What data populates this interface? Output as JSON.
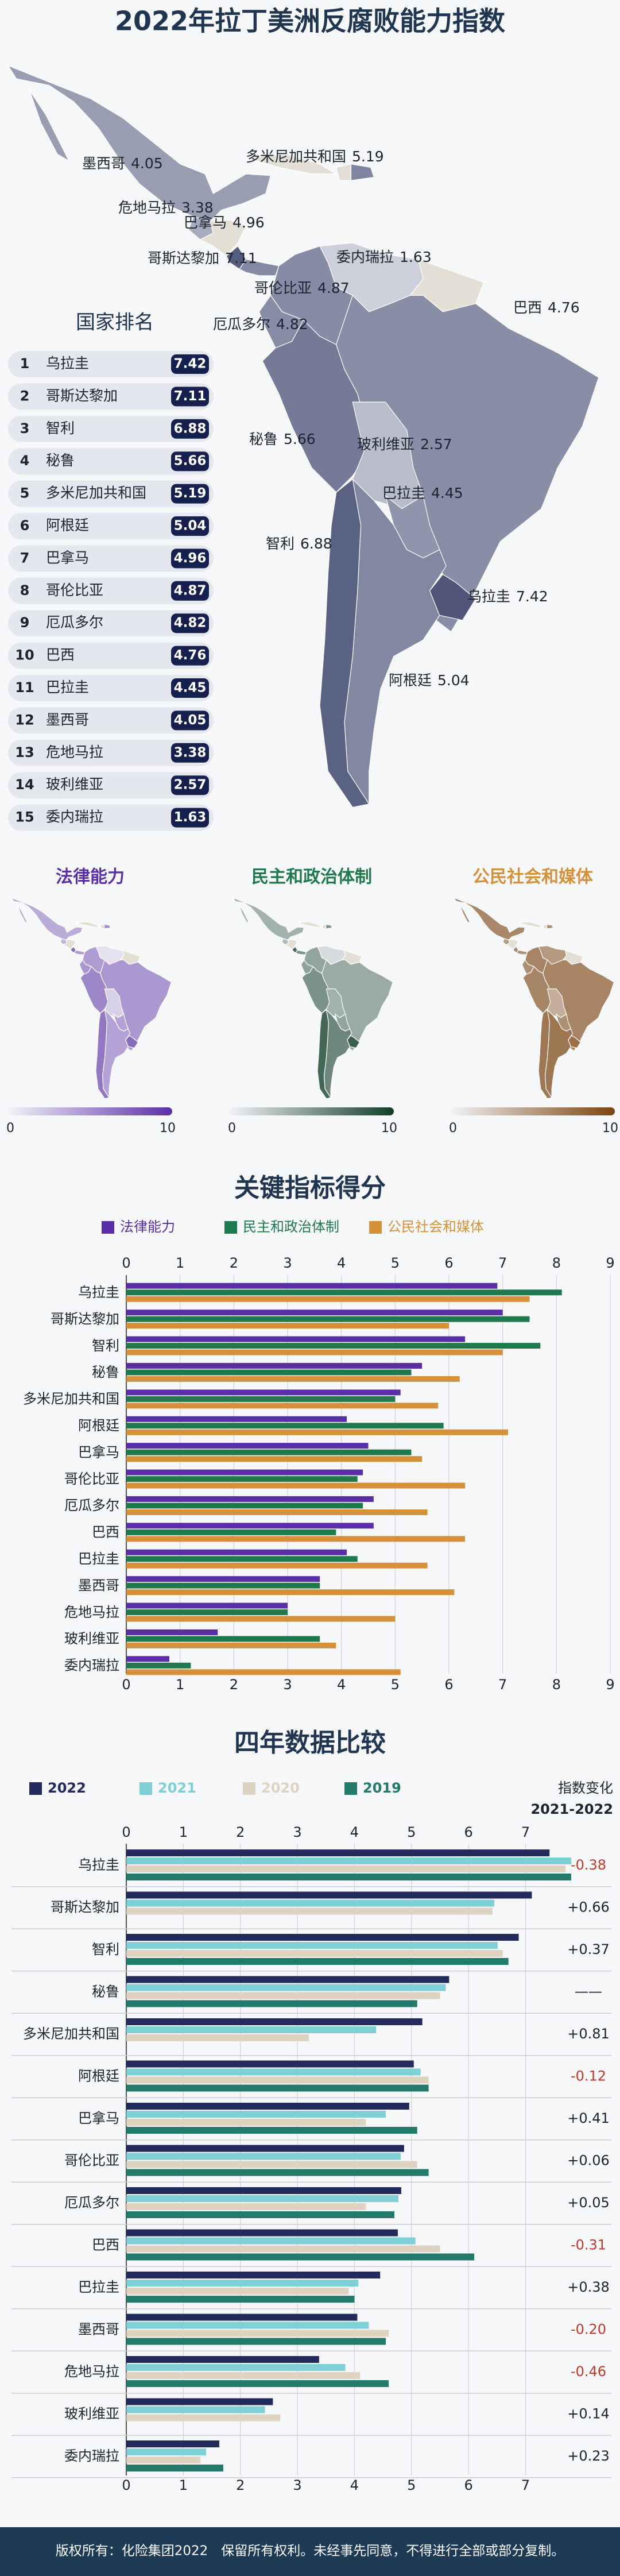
{
  "title": "2022年拉丁美洲反腐败能力指数",
  "map_color": "#16204f",
  "ranking": {
    "title": "国家排名",
    "items": [
      {
        "rank": 1,
        "name": "乌拉圭",
        "score": 7.42
      },
      {
        "rank": 2,
        "name": "哥斯达黎加",
        "score": 7.11
      },
      {
        "rank": 3,
        "name": "智利",
        "score": 6.88
      },
      {
        "rank": 4,
        "name": "秘鲁",
        "score": 5.66
      },
      {
        "rank": 5,
        "name": "多米尼加共和国",
        "score": 5.19
      },
      {
        "rank": 6,
        "name": "阿根廷",
        "score": 5.04
      },
      {
        "rank": 7,
        "name": "巴拿马",
        "score": 4.96
      },
      {
        "rank": 8,
        "name": "哥伦比亚",
        "score": 4.87
      },
      {
        "rank": 9,
        "name": "厄瓜多尔",
        "score": 4.82
      },
      {
        "rank": 10,
        "name": "巴西",
        "score": 4.76
      },
      {
        "rank": 11,
        "name": "巴拉圭",
        "score": 4.45
      },
      {
        "rank": 12,
        "name": "墨西哥",
        "score": 4.05
      },
      {
        "rank": 13,
        "name": "危地马拉",
        "score": 3.38
      },
      {
        "rank": 14,
        "name": "玻利维亚",
        "score": 2.57
      },
      {
        "rank": 15,
        "name": "委内瑞拉",
        "score": 1.63
      }
    ]
  },
  "indicator_maps": {
    "scale": [
      0,
      10
    ],
    "maps": [
      {
        "title": "法律能力",
        "color": "#5a2ea6"
      },
      {
        "title": "民主和政治体制",
        "color": "#123d28"
      },
      {
        "title": "公民社会和媒体",
        "color": "#7a440f"
      }
    ]
  },
  "chart_data": [
    {
      "type": "bar",
      "orientation": "horizontal",
      "title": "关键指标得分",
      "categories": [
        "乌拉圭",
        "哥斯达黎加",
        "智利",
        "秘鲁",
        "多米尼加共和国",
        "阿根廷",
        "巴拿马",
        "哥伦比亚",
        "厄瓜多尔",
        "巴西",
        "巴拉圭",
        "墨西哥",
        "危地马拉",
        "玻利维亚",
        "委内瑞拉"
      ],
      "series": [
        {
          "name": "法律能力",
          "color": "#5a2ea6",
          "values": [
            6.9,
            7.0,
            6.3,
            5.5,
            5.1,
            4.1,
            4.5,
            4.4,
            4.6,
            4.6,
            4.1,
            3.6,
            3.0,
            1.7,
            0.8
          ]
        },
        {
          "name": "民主和政治体制",
          "color": "#1e7a4c",
          "values": [
            8.1,
            7.5,
            7.7,
            5.3,
            5.0,
            5.9,
            5.3,
            4.3,
            4.4,
            3.9,
            4.3,
            3.6,
            3.0,
            3.6,
            1.2
          ]
        },
        {
          "name": "公民社会和媒体",
          "color": "#d4913a",
          "values": [
            7.5,
            6.0,
            7.0,
            6.2,
            5.8,
            7.1,
            5.5,
            6.3,
            5.6,
            6.3,
            5.6,
            6.1,
            5.0,
            3.9,
            5.1
          ]
        }
      ],
      "xlim": [
        0,
        9
      ],
      "xticks": [
        0,
        1,
        2,
        3,
        4,
        5,
        6,
        7,
        8,
        9
      ],
      "grid": true
    },
    {
      "type": "bar",
      "orientation": "horizontal",
      "title": "四年数据比较",
      "categories": [
        "乌拉圭",
        "哥斯达黎加",
        "智利",
        "秘鲁",
        "多米尼加共和国",
        "阿根廷",
        "巴拿马",
        "哥伦比亚",
        "厄瓜多尔",
        "巴西",
        "巴拉圭",
        "墨西哥",
        "危地马拉",
        "玻利维亚",
        "委内瑞拉"
      ],
      "series": [
        {
          "name": "2022",
          "color": "#232a5c",
          "values": [
            7.42,
            7.11,
            6.88,
            5.66,
            5.19,
            5.04,
            4.96,
            4.87,
            4.82,
            4.76,
            4.45,
            4.05,
            3.38,
            2.57,
            1.63
          ]
        },
        {
          "name": "2021",
          "color": "#7ecfd6",
          "values": [
            7.8,
            6.45,
            6.51,
            5.6,
            4.38,
            5.16,
            4.55,
            4.81,
            4.77,
            5.07,
            4.07,
            4.25,
            3.84,
            2.43,
            1.4
          ]
        },
        {
          "name": "2020",
          "color": "#ddd3c0",
          "values": [
            7.7,
            6.42,
            6.6,
            5.5,
            3.2,
            5.3,
            4.2,
            5.1,
            4.2,
            5.5,
            3.9,
            4.6,
            4.1,
            2.7,
            1.3
          ]
        },
        {
          "name": "2019",
          "color": "#237a6a",
          "values": [
            7.8,
            null,
            6.7,
            5.1,
            null,
            5.3,
            5.1,
            5.3,
            4.7,
            6.1,
            4.0,
            4.55,
            4.6,
            null,
            1.7
          ]
        }
      ],
      "xlim": [
        0,
        7.8
      ],
      "xticks": [
        0,
        1,
        2,
        3,
        4,
        5,
        6,
        7
      ],
      "grid": true,
      "change_title": "指数变化",
      "change_period": "2021-2022",
      "change_values": [
        -0.38,
        0.66,
        0.37,
        null,
        0.81,
        -0.12,
        0.41,
        0.06,
        0.05,
        -0.31,
        0.38,
        -0.2,
        -0.46,
        0.14,
        0.23
      ],
      "change_labels": [
        "-0.38",
        "+0.66",
        "+0.37",
        "——",
        "+0.81",
        "-0.12",
        "+0.41",
        "+0.06",
        "+0.05",
        "-0.31",
        "+0.38",
        "-0.20",
        "-0.46",
        "+0.14",
        "+0.23"
      ]
    }
  ],
  "footer": "版权所有：化险集团2022　保留所有权利。未经事先同意，不得进行全部或部分复制。"
}
